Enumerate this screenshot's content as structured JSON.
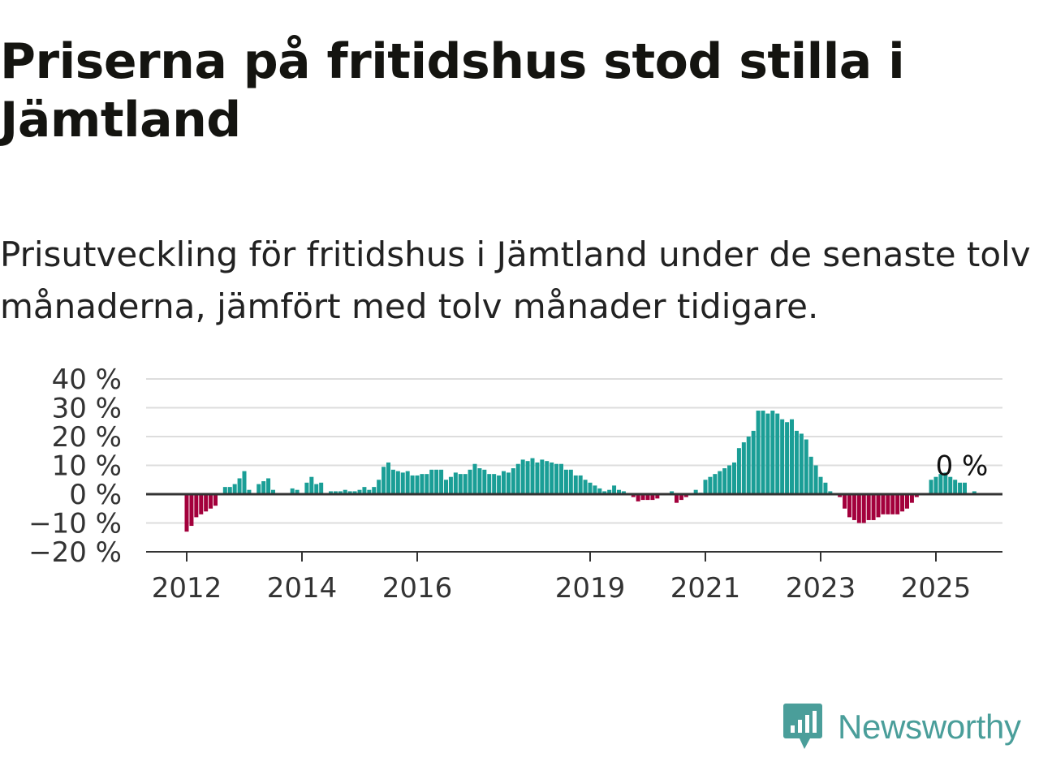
{
  "title": "Priserna på fritidshus stod stilla i Jämtland",
  "subtitle": "Prisutveckling för fritidshus i Jämtland under de senaste tolv månaderna, jämfört med tolv månader tidigare.",
  "logo": {
    "text": "Newsworthy",
    "icon": "bar-chart-speech-bubble-icon"
  },
  "colors": {
    "positive": "#1a9e96",
    "negative": "#a3003c",
    "grid": "#dddddd",
    "axis": "#333333"
  },
  "chart_data": {
    "type": "bar",
    "title": "Priserna på fritidshus stod stilla i Jämtland",
    "xlabel": "",
    "ylabel": "",
    "ylim": [
      -20,
      40
    ],
    "yticks": [
      40,
      30,
      20,
      10,
      0,
      -10,
      -20
    ],
    "ytick_labels": [
      "40 %",
      "30 %",
      "20 %",
      "10 %",
      "0 %",
      "−10 %",
      "−20 %"
    ],
    "xticks": [
      "2012",
      "2014",
      "2016",
      "2019",
      "2021",
      "2023",
      "2025"
    ],
    "grid": true,
    "legend": false,
    "annotation": {
      "text": "0 %",
      "at": "2025-06"
    },
    "start": "2012-01",
    "unit": "%",
    "values": [
      -13,
      -11,
      -8,
      -7,
      -6,
      -5,
      -4,
      0,
      2.5,
      2.5,
      3.5,
      5.5,
      8,
      1.5,
      0,
      3.5,
      4.5,
      5.5,
      1.5,
      0,
      0,
      0,
      2,
      1.5,
      0,
      4,
      6,
      3.5,
      4,
      0,
      1,
      1,
      1,
      1.5,
      1,
      1,
      1.5,
      2.5,
      1.5,
      2.5,
      5,
      9.5,
      11,
      8.5,
      8,
      7.5,
      8,
      6.5,
      6.5,
      7,
      7,
      8.5,
      8.5,
      8.5,
      5,
      6,
      7.5,
      7,
      7,
      8.5,
      10.5,
      9,
      8.5,
      7,
      7,
      6.5,
      8,
      7.5,
      9,
      10.5,
      12,
      11.5,
      12.5,
      11,
      12,
      11.5,
      11,
      10.5,
      10.5,
      8.5,
      8.5,
      6.5,
      6.5,
      5,
      4,
      3,
      2,
      1,
      1.5,
      3,
      1.5,
      1,
      0,
      -1,
      -2.5,
      -2,
      -2,
      -2,
      -1.5,
      0,
      0,
      1,
      -3,
      -2,
      -1,
      0,
      1.5,
      0.5,
      5,
      6,
      7,
      8,
      9,
      10,
      11,
      16,
      18,
      20,
      22,
      29,
      29,
      28,
      29,
      28,
      26,
      25,
      26,
      22,
      21,
      19,
      13,
      10,
      6,
      4,
      1,
      0,
      -1,
      -5,
      -8,
      -9,
      -10,
      -10,
      -9,
      -9,
      -8,
      -7,
      -7,
      -7,
      -7,
      -6,
      -5,
      -3,
      -1,
      0,
      0,
      5,
      6,
      7,
      7.5,
      6,
      5,
      4,
      4,
      0,
      1,
      0,
      0
    ]
  }
}
